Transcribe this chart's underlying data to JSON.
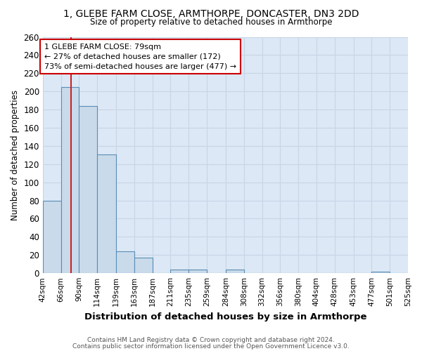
{
  "title1": "1, GLEBE FARM CLOSE, ARMTHORPE, DONCASTER, DN3 2DD",
  "title2": "Size of property relative to detached houses in Armthorpe",
  "xlabel": "Distribution of detached houses by size in Armthorpe",
  "ylabel": "Number of detached properties",
  "footer1": "Contains HM Land Registry data © Crown copyright and database right 2024.",
  "footer2": "Contains public sector information licensed under the Open Government Licence v3.0.",
  "bin_edges": [
    42,
    66,
    90,
    114,
    139,
    163,
    187,
    211,
    235,
    259,
    284,
    308,
    332,
    356,
    380,
    404,
    428,
    453,
    477,
    501,
    525
  ],
  "bar_heights": [
    80,
    205,
    184,
    131,
    24,
    17,
    0,
    4,
    4,
    0,
    4,
    0,
    0,
    0,
    0,
    0,
    0,
    0,
    2,
    0
  ],
  "property_size": 79,
  "annotation_line1": "1 GLEBE FARM CLOSE: 79sqm",
  "annotation_line2": "← 27% of detached houses are smaller (172)",
  "annotation_line3": "73% of semi-detached houses are larger (477) →",
  "bar_color": "#c9daea",
  "bar_edge_color": "#5a8db5",
  "red_line_color": "#cc2222",
  "annotation_box_edge": "#cc0000",
  "grid_color": "#c8d5e5",
  "plot_bg_color": "#dce8f5",
  "fig_bg_color": "#ffffff",
  "ylim": [
    0,
    260
  ],
  "yticks": [
    0,
    20,
    40,
    60,
    80,
    100,
    120,
    140,
    160,
    180,
    200,
    220,
    240,
    260
  ]
}
